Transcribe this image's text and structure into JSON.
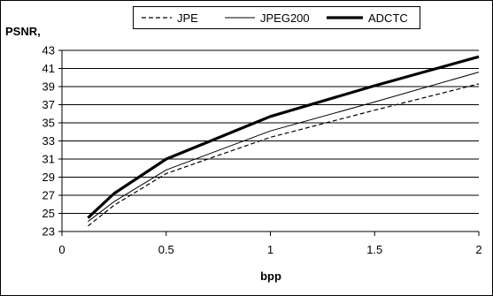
{
  "chart_data": {
    "type": "line",
    "title": "",
    "ylabel": "PSNR,",
    "xlabel": "bpp",
    "xlim": [
      0,
      2
    ],
    "ylim": [
      23,
      43
    ],
    "x_ticks": [
      "0",
      "0.5",
      "1",
      "1.5",
      "2"
    ],
    "y_ticks": [
      "23",
      "25",
      "27",
      "29",
      "31",
      "33",
      "35",
      "37",
      "39",
      "41",
      "43"
    ],
    "grid": "horizontal",
    "legend_position": "top",
    "series": [
      {
        "name": "JPE",
        "style": "dashed",
        "color": "#000000",
        "x": [
          0.125,
          0.25,
          0.5,
          1,
          1.5,
          2
        ],
        "y": [
          23.6,
          25.9,
          29.4,
          33.4,
          36.4,
          39.3
        ]
      },
      {
        "name": "JPEG200",
        "style": "thin",
        "color": "#000000",
        "x": [
          0.125,
          0.25,
          0.5,
          1,
          1.5,
          2
        ],
        "y": [
          24.1,
          26.3,
          29.8,
          34.1,
          37.3,
          40.6
        ]
      },
      {
        "name": "ADCTC",
        "style": "thick",
        "color": "#000000",
        "x": [
          0.125,
          0.25,
          0.5,
          1,
          1.5,
          2
        ],
        "y": [
          24.5,
          27.2,
          31.0,
          35.7,
          39.1,
          42.3
        ]
      }
    ]
  }
}
